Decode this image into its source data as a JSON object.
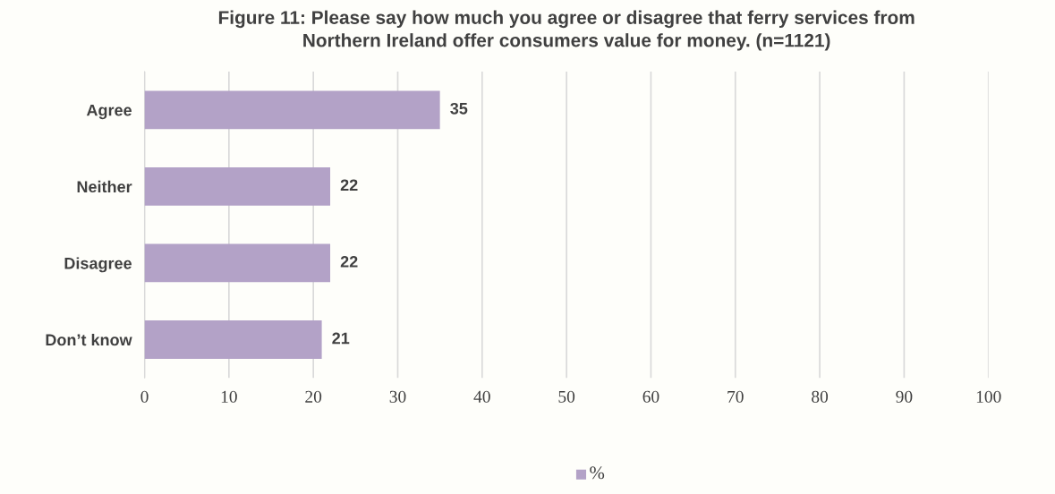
{
  "chart_data": {
    "type": "bar",
    "orientation": "horizontal",
    "title": "Figure 11: Please say how much you agree or disagree that ferry services from\nNorthern Ireland offer consumers value for money. (n=1121)",
    "categories": [
      "Agree",
      "Neither",
      "Disagree",
      "Don’t know"
    ],
    "series": [
      {
        "name": "%",
        "color": "#b3a2c7",
        "values": [
          35,
          22,
          22,
          21
        ]
      }
    ],
    "xlim": [
      0,
      100
    ],
    "xticks": [
      0,
      10,
      20,
      30,
      40,
      50,
      60,
      70,
      80,
      90,
      100
    ],
    "grid": "x",
    "legend": "bottom",
    "data_labels": true
  }
}
